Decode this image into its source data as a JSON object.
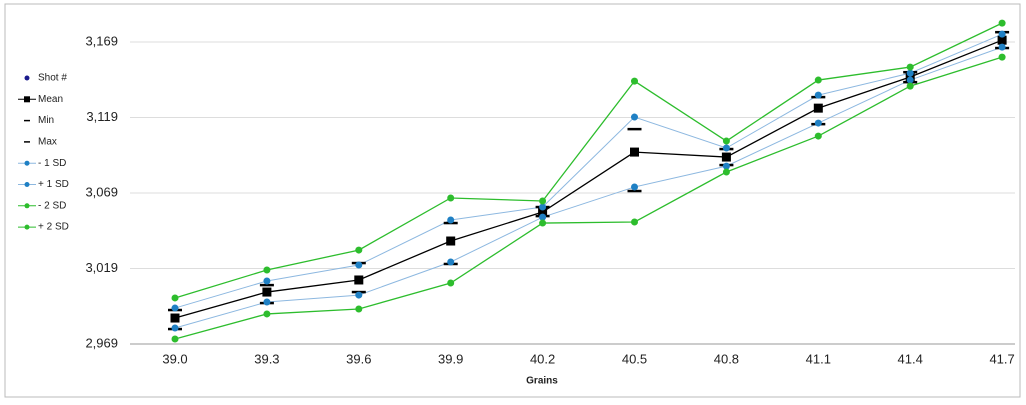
{
  "chart_data": {
    "type": "line",
    "x_label": "Grains",
    "categories": [
      "39.0",
      "39.3",
      "39.6",
      "39.9",
      "40.2",
      "40.5",
      "40.8",
      "41.1",
      "41.4",
      "41.7"
    ],
    "ylim": [
      2969,
      3194
    ],
    "yticks": [
      {
        "value": 2969,
        "label": "2,969"
      },
      {
        "value": 3019,
        "label": "3,019"
      },
      {
        "value": 3069,
        "label": "3,069"
      },
      {
        "value": 3119,
        "label": "3,119"
      },
      {
        "value": 3169,
        "label": "3,169"
      }
    ],
    "grid": true,
    "legend": "left",
    "series": [
      {
        "name": "Shot #",
        "color": "#1a1a8c",
        "marker": "circle",
        "line": false,
        "values": [
          null,
          null,
          null,
          null,
          null,
          null,
          null,
          null,
          null,
          null
        ]
      },
      {
        "name": "Mean",
        "color": "#000000",
        "marker": "square",
        "line": true,
        "values": [
          2986.2,
          3003.4,
          3011.4,
          3037.2,
          3056.4,
          3096.1,
          3092.8,
          3125.2,
          3145.8,
          3170.2
        ]
      },
      {
        "name": "Min",
        "color": "#000000",
        "marker": "dash",
        "line": false,
        "values": [
          2978.9,
          2996.1,
          3003.4,
          3022.0,
          3053.7,
          3070.3,
          3087.5,
          3114.6,
          3142.4,
          3165.0
        ]
      },
      {
        "name": "Max",
        "color": "#000000",
        "marker": "dash",
        "line": false,
        "values": [
          2991.5,
          3008.0,
          3022.6,
          3049.1,
          3059.7,
          3111.3,
          3098.1,
          3132.5,
          3149.0,
          3175.5
        ]
      },
      {
        "name": "- 1 SD",
        "color": "#1f80c4",
        "line_color": "#8db8e0",
        "marker": "circle",
        "line": true,
        "values": [
          2979.6,
          2996.8,
          3001.4,
          3023.3,
          3053.0,
          3073.0,
          3086.8,
          3115.3,
          3143.8,
          3165.6
        ]
      },
      {
        "name": "+ 1 SD",
        "color": "#1f80c4",
        "line_color": "#8db8e0",
        "marker": "circle",
        "line": true,
        "values": [
          2992.8,
          3010.7,
          3021.3,
          3051.1,
          3059.7,
          3119.3,
          3098.8,
          3133.8,
          3148.4,
          3174.2
        ]
      },
      {
        "name": "- 2 SD",
        "color": "#2dbd2d",
        "marker": "circle",
        "line": true,
        "values": [
          2972.3,
          2988.9,
          2992.2,
          3009.4,
          3049.1,
          3049.8,
          3082.9,
          3106.7,
          3139.8,
          3159.0
        ]
      },
      {
        "name": "+ 2 SD",
        "color": "#2dbd2d",
        "marker": "circle",
        "line": true,
        "values": [
          2999.5,
          3018.0,
          3031.2,
          3065.7,
          3063.7,
          3143.1,
          3103.4,
          3143.8,
          3152.4,
          3181.5
        ]
      }
    ]
  }
}
